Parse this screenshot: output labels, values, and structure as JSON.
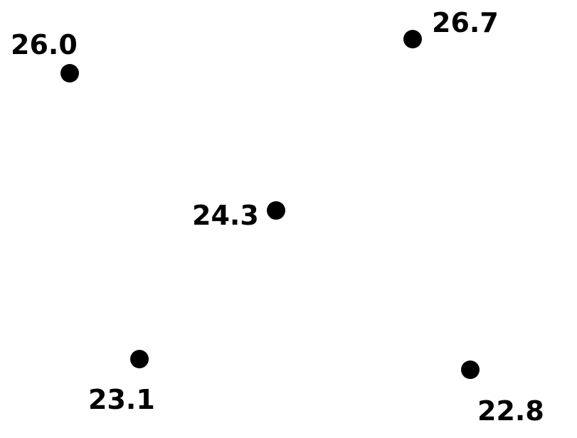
{
  "colors": {
    "background": "#ffffff",
    "marker": "#000000",
    "label": "#000000"
  },
  "points": [
    {
      "label": "26.0"
    },
    {
      "label": "26.7"
    },
    {
      "label": "24.3"
    },
    {
      "label": "23.1"
    },
    {
      "label": "22.8"
    }
  ]
}
